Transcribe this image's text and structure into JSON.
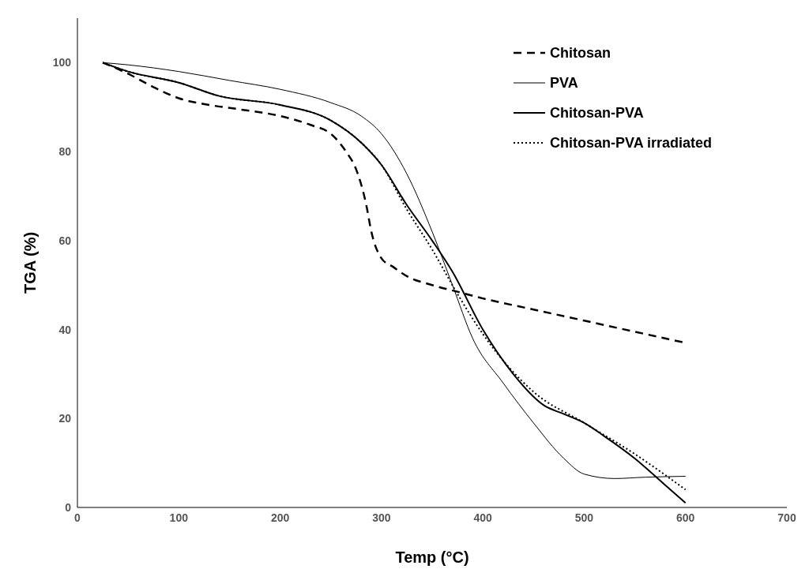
{
  "chart_data": {
    "type": "line",
    "xlabel": "Temp (°C)",
    "ylabel": "TGA (%)",
    "xlim": [
      0,
      700
    ],
    "xticks": [
      0,
      100,
      200,
      300,
      400,
      500,
      600,
      700
    ],
    "ylim": [
      0,
      110
    ],
    "yticks": [
      0,
      20,
      40,
      60,
      80,
      100
    ],
    "grid": false,
    "legend": "top right",
    "marker": "none",
    "series": [
      {
        "name": "Chitosan",
        "color": "#000000",
        "line_style": "dashed",
        "x": [
          25,
          50,
          75,
          100,
          130,
          160,
          200,
          230,
          250,
          265,
          275,
          285,
          290,
          300,
          312,
          325,
          350,
          375,
          400,
          450,
          500,
          550,
          600
        ],
        "values": [
          100,
          97.5,
          94.5,
          92,
          90.5,
          89.5,
          88,
          86,
          84,
          80,
          76,
          68,
          62,
          56,
          54,
          52,
          50,
          48.5,
          47,
          44.5,
          42,
          39.5,
          37
        ]
      },
      {
        "name": "PVA",
        "color": "#000000",
        "line_style": "solid",
        "x": [
          25,
          50,
          100,
          150,
          200,
          250,
          280,
          300,
          325,
          350,
          370,
          390,
          420,
          450,
          480,
          500,
          530,
          560,
          600
        ],
        "values": [
          100,
          99.5,
          98,
          96,
          94,
          91,
          88,
          84,
          75,
          62,
          50,
          38,
          28,
          19,
          11,
          7.5,
          6.5,
          6.8,
          7
        ]
      },
      {
        "name": "Chitosan-PVA",
        "color": "#000000",
        "line_style": "solid",
        "x": [
          25,
          50,
          100,
          140,
          200,
          250,
          280,
          300,
          325,
          350,
          370,
          400,
          430,
          460,
          480,
          500,
          520,
          550,
          580,
          600
        ],
        "values": [
          100,
          98,
          95.5,
          92.5,
          90.5,
          87,
          82,
          77,
          68,
          60,
          53,
          40,
          30,
          23,
          21,
          19,
          16,
          11,
          5,
          1
        ]
      },
      {
        "name": "Chitosan-PVA irradiated",
        "color": "#000000",
        "line_style": "dotted",
        "x": [
          25,
          50,
          100,
          140,
          200,
          250,
          280,
          300,
          325,
          350,
          375,
          400,
          450,
          500,
          550,
          600
        ],
        "values": [
          100,
          98,
          95.5,
          92.5,
          90.5,
          87,
          82,
          77,
          67,
          58,
          48,
          39,
          26,
          19,
          12,
          4
        ]
      }
    ]
  }
}
